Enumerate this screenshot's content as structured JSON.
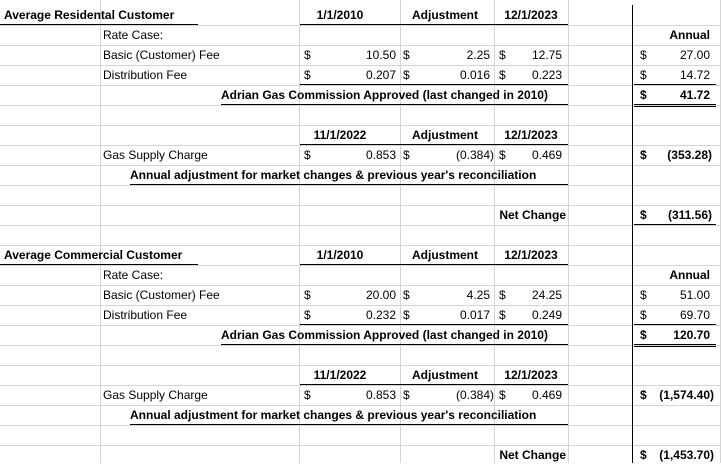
{
  "sections": [
    {
      "title": "Average Residental Customer",
      "rate_header": {
        "col1": "1/1/2010",
        "col2": "Adjustment",
        "col3": "12/1/2023"
      },
      "rate_case_label": "Rate Case:",
      "annual_header": "Annual",
      "rows": [
        {
          "label": "Basic (Customer) Fee",
          "cur1": "$",
          "v1": "10.50",
          "cur2": "$",
          "v2": "2.25",
          "cur3": "$",
          "v3": "12.75",
          "cur4": "$",
          "annual": "27.00"
        },
        {
          "label": "Distribution Fee",
          "cur1": "$",
          "v1": "0.207",
          "cur2": "$",
          "v2": "0.016",
          "cur3": "$",
          "v3": "0.223",
          "cur4": "$",
          "annual": "14.72"
        }
      ],
      "approval_note": "Adrian Gas Commission Approved (last changed in 2010)",
      "approval_total_cur": "$",
      "approval_total": "41.72",
      "gas_header": {
        "col1": "11/1/2022",
        "col2": "Adjustment",
        "col3": "12/1/2023"
      },
      "gas_row": {
        "label": "Gas Supply Charge",
        "cur1": "$",
        "v1": "0.853",
        "cur2": "$",
        "v2": "(0.384)",
        "cur3": "$",
        "v3": "0.469",
        "cur4": "$",
        "annual": "(353.28)"
      },
      "gas_note": "Annual adjustment for market changes & previous year's reconciliation",
      "net_label": "Net Change",
      "net_cur": "$",
      "net_value": "(311.56)"
    },
    {
      "title": "Average Commercial Customer",
      "rate_header": {
        "col1": "1/1/2010",
        "col2": "Adjustment",
        "col3": "12/1/2023"
      },
      "rate_case_label": "Rate Case:",
      "annual_header": "Annual",
      "rows": [
        {
          "label": "Basic (Customer) Fee",
          "cur1": "$",
          "v1": "20.00",
          "cur2": "$",
          "v2": "4.25",
          "cur3": "$",
          "v3": "24.25",
          "cur4": "$",
          "annual": "51.00"
        },
        {
          "label": "Distribution Fee",
          "cur1": "$",
          "v1": "0.232",
          "cur2": "$",
          "v2": "0.017",
          "cur3": "$",
          "v3": "0.249",
          "cur4": "$",
          "annual": "69.70"
        }
      ],
      "approval_note": "Adrian Gas Commission Approved (last changed in 2010)",
      "approval_total_cur": "$",
      "approval_total": "120.70",
      "gas_header": {
        "col1": "11/1/2022",
        "col2": "Adjustment",
        "col3": "12/1/2023"
      },
      "gas_row": {
        "label": "Gas Supply Charge",
        "cur1": "$",
        "v1": "0.853",
        "cur2": "$",
        "v2": "(0.384)",
        "cur3": "$",
        "v3": "0.469",
        "cur4": "$",
        "annual": "(1,574.40)"
      },
      "gas_note": "Annual adjustment for market changes & previous year's reconciliation",
      "net_label": "Net Change",
      "net_cur": "$",
      "net_value": "(1,453.70)"
    }
  ]
}
